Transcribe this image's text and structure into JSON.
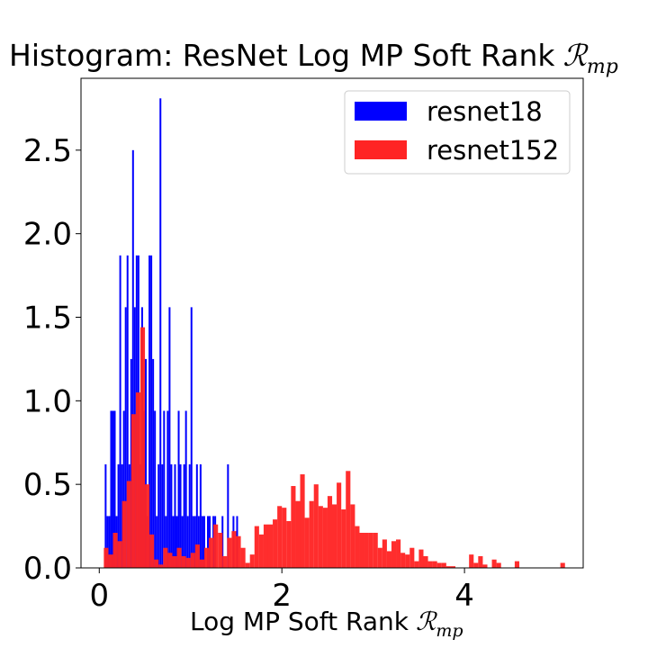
{
  "chart_data": {
    "type": "bar",
    "title": "Histogram: ResNet Log MP Soft Rank",
    "title_math": "ℛ",
    "title_math_sub": "mp",
    "xlabel": "Log MP Soft Rank",
    "xlabel_math": "ℛ",
    "xlabel_math_sub": "mp",
    "ylabel": "",
    "xlim": [
      -0.2,
      5.3
    ],
    "ylim": [
      0,
      2.93
    ],
    "xticks": [
      0,
      2,
      4
    ],
    "xtick_labels": [
      "0",
      "2",
      "4"
    ],
    "yticks": [
      0.0,
      0.5,
      1.0,
      1.5,
      2.0,
      2.5
    ],
    "ytick_labels": [
      "0.0",
      "0.5",
      "1.0",
      "1.5",
      "2.0",
      "2.5"
    ],
    "grid": false,
    "legend_position": "top-right",
    "series": [
      {
        "name": "resnet18",
        "color": "#0000ff",
        "bin_width": 0.0197,
        "bins": [
          [
            0.06,
            0.62
          ],
          [
            0.08,
            0.31
          ],
          [
            0.1,
            0.31
          ],
          [
            0.12,
            0.94
          ],
          [
            0.14,
            0.94
          ],
          [
            0.16,
            0.94
          ],
          [
            0.18,
            0.31
          ],
          [
            0.2,
            0.62
          ],
          [
            0.22,
            1.87
          ],
          [
            0.24,
            0.62
          ],
          [
            0.26,
            0.94
          ],
          [
            0.28,
            1.56
          ],
          [
            0.3,
            1.87
          ],
          [
            0.32,
            0.62
          ],
          [
            0.34,
            1.25
          ],
          [
            0.36,
            2.5
          ],
          [
            0.38,
            1.56
          ],
          [
            0.4,
            1.87
          ],
          [
            0.42,
            1.87
          ],
          [
            0.44,
            0.62
          ],
          [
            0.46,
            1.56
          ],
          [
            0.48,
            0.94
          ],
          [
            0.5,
            1.25
          ],
          [
            0.52,
            0.31
          ],
          [
            0.54,
            1.87
          ],
          [
            0.56,
            1.87
          ],
          [
            0.58,
            1.25
          ],
          [
            0.6,
            0.94
          ],
          [
            0.62,
            0.31
          ],
          [
            0.64,
            0.62
          ],
          [
            0.66,
            2.81
          ],
          [
            0.68,
            0.62
          ],
          [
            0.7,
            0.94
          ],
          [
            0.72,
            0.31
          ],
          [
            0.74,
            0.94
          ],
          [
            0.76,
            1.56
          ],
          [
            0.78,
            0.62
          ],
          [
            0.8,
            0.31
          ],
          [
            0.82,
            0.62
          ],
          [
            0.84,
            0.31
          ],
          [
            0.86,
            0.94
          ],
          [
            0.88,
            0.62
          ],
          [
            0.9,
            0.31
          ],
          [
            0.92,
            0.62
          ],
          [
            0.94,
            0.94
          ],
          [
            0.96,
            0.31
          ],
          [
            0.98,
            0.62
          ],
          [
            1.0,
            1.56
          ],
          [
            1.02,
            0.31
          ],
          [
            1.04,
            0.31
          ],
          [
            1.06,
            0.62
          ],
          [
            1.08,
            0.31
          ],
          [
            1.1,
            0.62
          ],
          [
            1.12,
            0.31
          ],
          [
            1.14,
            0.31
          ],
          [
            1.18,
            0.31
          ],
          [
            1.2,
            0.31
          ],
          [
            1.24,
            0.31
          ],
          [
            1.26,
            0.31
          ],
          [
            1.34,
            0.31
          ],
          [
            1.4,
            0.62
          ],
          [
            1.46,
            0.31
          ],
          [
            1.5,
            0.31
          ]
        ]
      },
      {
        "name": "resnet152",
        "color": "#ff2424",
        "bin_width": 0.0505,
        "bins": [
          [
            0.05,
            0.12
          ],
          [
            0.1,
            0.08
          ],
          [
            0.15,
            0.21
          ],
          [
            0.2,
            0.16
          ],
          [
            0.25,
            0.4
          ],
          [
            0.3,
            0.52
          ],
          [
            0.35,
            0.92
          ],
          [
            0.4,
            1.05
          ],
          [
            0.45,
            1.44
          ],
          [
            0.5,
            0.5
          ],
          [
            0.55,
            0.2
          ],
          [
            0.6,
            0.05
          ],
          [
            0.65,
            0.02
          ],
          [
            0.7,
            0.12
          ],
          [
            0.75,
            0.09
          ],
          [
            0.8,
            0.07
          ],
          [
            0.85,
            0.12
          ],
          [
            0.9,
            0.07
          ],
          [
            0.95,
            0.06
          ],
          [
            1.0,
            0.09
          ],
          [
            1.05,
            0.14
          ],
          [
            1.1,
            0.05
          ],
          [
            1.15,
            0.12
          ],
          [
            1.2,
            0.18
          ],
          [
            1.25,
            0.26
          ],
          [
            1.3,
            0.21
          ],
          [
            1.35,
            0.07
          ],
          [
            1.4,
            0.18
          ],
          [
            1.45,
            0.22
          ],
          [
            1.5,
            0.19
          ],
          [
            1.55,
            0.12
          ],
          [
            1.6,
            0.03
          ],
          [
            1.65,
            0.08
          ],
          [
            1.7,
            0.25
          ],
          [
            1.75,
            0.2
          ],
          [
            1.8,
            0.26
          ],
          [
            1.85,
            0.26
          ],
          [
            1.9,
            0.29
          ],
          [
            1.95,
            0.37
          ],
          [
            2.0,
            0.36
          ],
          [
            2.05,
            0.28
          ],
          [
            2.1,
            0.49
          ],
          [
            2.15,
            0.4
          ],
          [
            2.2,
            0.56
          ],
          [
            2.25,
            0.3
          ],
          [
            2.3,
            0.4
          ],
          [
            2.35,
            0.5
          ],
          [
            2.4,
            0.37
          ],
          [
            2.45,
            0.36
          ],
          [
            2.5,
            0.43
          ],
          [
            2.55,
            0.38
          ],
          [
            2.6,
            0.51
          ],
          [
            2.65,
            0.35
          ],
          [
            2.7,
            0.58
          ],
          [
            2.75,
            0.38
          ],
          [
            2.8,
            0.25
          ],
          [
            2.85,
            0.21
          ],
          [
            2.9,
            0.21
          ],
          [
            2.95,
            0.21
          ],
          [
            3.0,
            0.21
          ],
          [
            3.05,
            0.12
          ],
          [
            3.1,
            0.17
          ],
          [
            3.15,
            0.1
          ],
          [
            3.2,
            0.16
          ],
          [
            3.25,
            0.17
          ],
          [
            3.3,
            0.09
          ],
          [
            3.35,
            0.08
          ],
          [
            3.4,
            0.12
          ],
          [
            3.45,
            0.04
          ],
          [
            3.5,
            0.11
          ],
          [
            3.55,
            0.07
          ],
          [
            3.6,
            0.04
          ],
          [
            3.65,
            0.04
          ],
          [
            3.7,
            0.03
          ],
          [
            3.75,
            0.03
          ],
          [
            3.8,
            0.01
          ],
          [
            3.85,
            0.01
          ],
          [
            4.05,
            0.08
          ],
          [
            4.1,
            0.03
          ],
          [
            4.15,
            0.07
          ],
          [
            4.2,
            0.02
          ],
          [
            4.3,
            0.05
          ],
          [
            4.35,
            0.03
          ],
          [
            4.55,
            0.04
          ],
          [
            5.05,
            0.03
          ]
        ]
      }
    ]
  }
}
